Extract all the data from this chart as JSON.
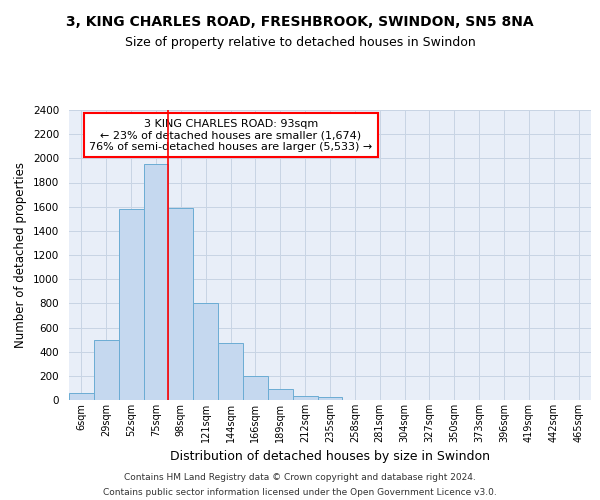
{
  "title1": "3, KING CHARLES ROAD, FRESHBROOK, SWINDON, SN5 8NA",
  "title2": "Size of property relative to detached houses in Swindon",
  "xlabel": "Distribution of detached houses by size in Swindon",
  "ylabel": "Number of detached properties",
  "categories": [
    "6sqm",
    "29sqm",
    "52sqm",
    "75sqm",
    "98sqm",
    "121sqm",
    "144sqm",
    "166sqm",
    "189sqm",
    "212sqm",
    "235sqm",
    "258sqm",
    "281sqm",
    "304sqm",
    "327sqm",
    "350sqm",
    "373sqm",
    "396sqm",
    "419sqm",
    "442sqm",
    "465sqm"
  ],
  "values": [
    60,
    500,
    1580,
    1950,
    1590,
    800,
    475,
    195,
    90,
    35,
    25,
    0,
    0,
    0,
    0,
    0,
    0,
    0,
    0,
    0,
    0
  ],
  "bar_color": "#c5d8ef",
  "bar_edge_color": "#6bacd4",
  "grid_color": "#c8d4e4",
  "background_color": "#e8eef8",
  "annotation_text": "3 KING CHARLES ROAD: 93sqm\n← 23% of detached houses are smaller (1,674)\n76% of semi-detached houses are larger (5,533) →",
  "annotation_box_color": "white",
  "annotation_border_color": "red",
  "footer1": "Contains HM Land Registry data © Crown copyright and database right 2024.",
  "footer2": "Contains public sector information licensed under the Open Government Licence v3.0.",
  "ylim": [
    0,
    2400
  ],
  "yticks": [
    0,
    200,
    400,
    600,
    800,
    1000,
    1200,
    1400,
    1600,
    1800,
    2000,
    2200,
    2400
  ],
  "red_line_bin": 4
}
